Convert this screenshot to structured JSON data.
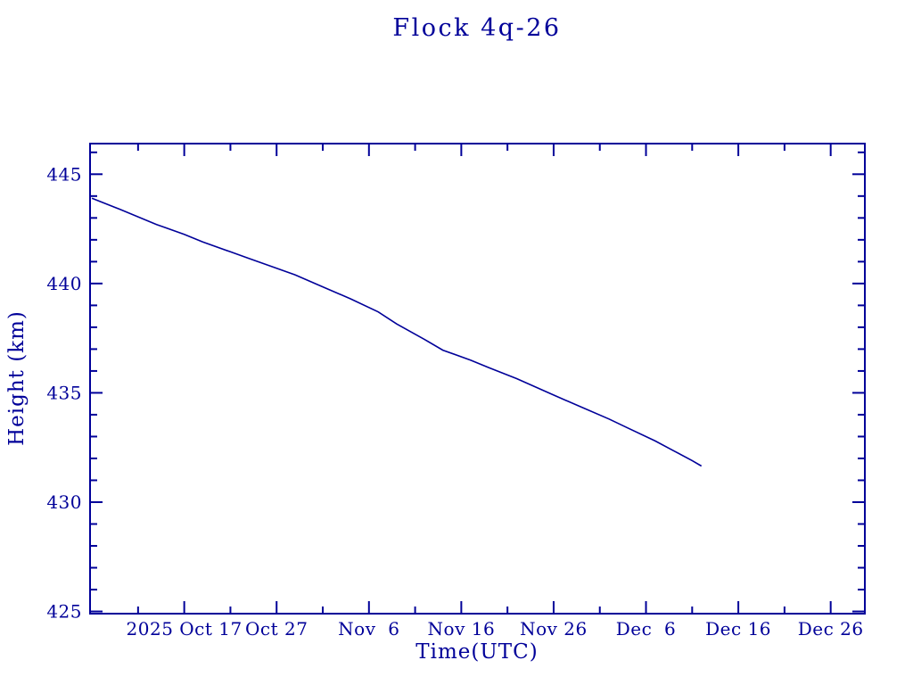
{
  "window": {
    "background_color": "#ffffff",
    "ink_color": "#000099"
  },
  "chart_data": {
    "type": "line",
    "title": "Flock 4q-26",
    "xlabel": "Time(UTC)",
    "ylabel": "Height (km)",
    "grid": false,
    "legend": null,
    "x_epoch": "2025-10-01",
    "x_domain_days": [
      5.8,
      89.7
    ],
    "ylim": [
      424.9,
      446.4
    ],
    "y_ticks_major": [
      425,
      430,
      435,
      440,
      445
    ],
    "y_tick_minor_step": 1,
    "x_ticks_major": [
      {
        "date": "2025-10-17",
        "label": "2025 Oct 17"
      },
      {
        "date": "2025-10-27",
        "label": "Oct 27"
      },
      {
        "date": "2025-11-06",
        "label": "Nov  6"
      },
      {
        "date": "2025-11-16",
        "label": "Nov 16"
      },
      {
        "date": "2025-11-26",
        "label": "Nov 26"
      },
      {
        "date": "2025-12-06",
        "label": "Dec  6"
      },
      {
        "date": "2025-12-16",
        "label": "Dec 16"
      },
      {
        "date": "2025-12-26",
        "label": "Dec 26"
      }
    ],
    "x_ticks_minor": [
      "2025-10-12",
      "2025-10-22",
      "2025-11-01",
      "2025-11-11",
      "2025-11-21",
      "2025-12-01",
      "2025-12-11",
      "2025-12-21"
    ],
    "series": [
      {
        "name": "Flock 4q-26 height",
        "color": "#000099",
        "points": [
          {
            "date": "2025-10-07",
            "h": 443.9
          },
          {
            "date": "2025-10-10",
            "h": 443.4
          },
          {
            "date": "2025-10-14",
            "h": 442.7
          },
          {
            "date": "2025-10-17",
            "h": 442.25
          },
          {
            "date": "2025-10-19",
            "h": 441.9
          },
          {
            "date": "2025-10-22",
            "h": 441.45
          },
          {
            "date": "2025-10-24",
            "h": 441.15
          },
          {
            "date": "2025-10-27",
            "h": 440.7
          },
          {
            "date": "2025-10-29",
            "h": 440.4
          },
          {
            "date": "2025-11-01",
            "h": 439.85
          },
          {
            "date": "2025-11-04",
            "h": 439.3
          },
          {
            "date": "2025-11-07",
            "h": 438.7
          },
          {
            "date": "2025-11-09",
            "h": 438.15
          },
          {
            "date": "2025-11-12",
            "h": 437.45
          },
          {
            "date": "2025-11-14",
            "h": 436.95
          },
          {
            "date": "2025-11-17",
            "h": 436.5
          },
          {
            "date": "2025-11-19",
            "h": 436.15
          },
          {
            "date": "2025-11-22",
            "h": 435.65
          },
          {
            "date": "2025-11-26",
            "h": 434.9
          },
          {
            "date": "2025-11-29",
            "h": 434.35
          },
          {
            "date": "2025-12-02",
            "h": 433.8
          },
          {
            "date": "2025-12-04",
            "h": 433.4
          },
          {
            "date": "2025-12-07",
            "h": 432.8
          },
          {
            "date": "2025-12-09",
            "h": 432.35
          },
          {
            "date": "2025-12-11",
            "h": 431.9
          },
          {
            "date": "2025-12-12",
            "h": 431.65
          }
        ]
      }
    ]
  }
}
